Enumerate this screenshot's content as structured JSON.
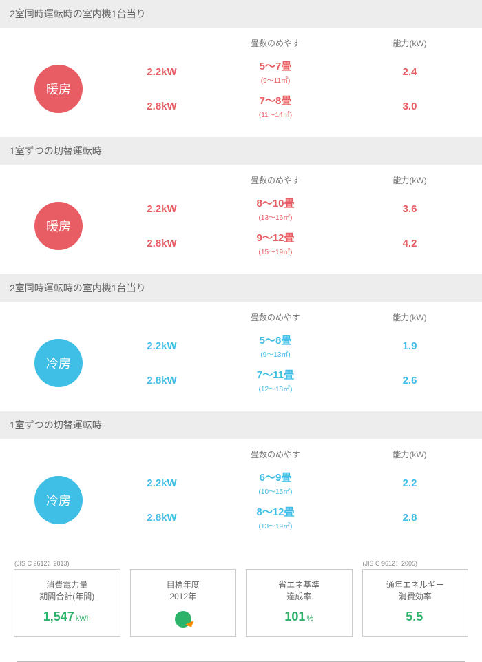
{
  "colors": {
    "heating": "#e85c63",
    "cooling": "#3fbee6",
    "accentGreen": "#2bb36a",
    "headerBg": "#ededed",
    "cardBorder": "#cccccc"
  },
  "columnLabels": {
    "tatami": "畳数のめやす",
    "capacity": "能力(kW)"
  },
  "sections": [
    {
      "title": "2室同時運転時の室内機1台当り",
      "mode": "heating",
      "badge": "暖房",
      "rows": [
        {
          "kw": "2.2kW",
          "tatami": "5～7畳",
          "area": "(9～11㎡)",
          "cap": "2.4"
        },
        {
          "kw": "2.8kW",
          "tatami": "7～8畳",
          "area": "(11～14㎡)",
          "cap": "3.0"
        }
      ]
    },
    {
      "title": "1室ずつの切替運転時",
      "mode": "heating",
      "badge": "暖房",
      "rows": [
        {
          "kw": "2.2kW",
          "tatami": "8～10畳",
          "area": "(13～16㎡)",
          "cap": "3.6"
        },
        {
          "kw": "2.8kW",
          "tatami": "9～12畳",
          "area": "(15～19㎡)",
          "cap": "4.2"
        }
      ]
    },
    {
      "title": "2室同時運転時の室内機1台当り",
      "mode": "cooling",
      "badge": "冷房",
      "rows": [
        {
          "kw": "2.2kW",
          "tatami": "5～8畳",
          "area": "(9～13㎡)",
          "cap": "1.9"
        },
        {
          "kw": "2.8kW",
          "tatami": "7～11畳",
          "area": "(12～18㎡)",
          "cap": "2.6"
        }
      ]
    },
    {
      "title": "1室ずつの切替運転時",
      "mode": "cooling",
      "badge": "冷房",
      "rows": [
        {
          "kw": "2.2kW",
          "tatami": "6～9畳",
          "area": "(10～15㎡)",
          "cap": "2.2"
        },
        {
          "kw": "2.8kW",
          "tatami": "8～12畳",
          "area": "(13～19㎡)",
          "cap": "2.8"
        }
      ]
    }
  ],
  "cards": [
    {
      "sup": "(JIS C 9612：2013)",
      "title1": "消費電力量",
      "title2": "期間合計(年間)",
      "value": "1,547",
      "unit": "kWh"
    },
    {
      "title1": "目標年度",
      "title2": "2012年",
      "icon": "eco"
    },
    {
      "title1": "省エネ基準",
      "title2": "達成率",
      "value": "101",
      "unit": "%"
    },
    {
      "sup": "(JIS C 9612：2005)",
      "title1": "通年エネルギー",
      "title2": "消費効率",
      "value": "5.5",
      "unit": ""
    }
  ]
}
